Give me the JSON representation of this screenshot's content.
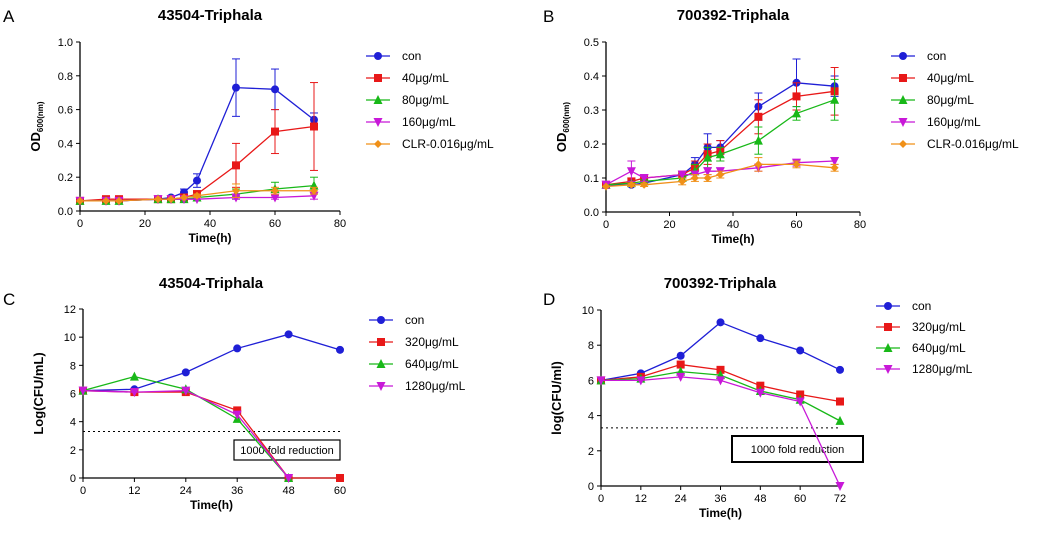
{
  "chart_data": [
    {
      "panel_label": "A",
      "type": "line",
      "title": "43504-Triphala",
      "xlabel": "Time(h)",
      "ylabel": "OD",
      "ylabel_sub": "600(nm)",
      "xlim": [
        0,
        80
      ],
      "ylim": [
        0,
        1.0
      ],
      "xticks": [
        "0",
        "20",
        "40",
        "60",
        "80"
      ],
      "yticks": [
        "0.0",
        "0.2",
        "0.4",
        "0.6",
        "0.8",
        "1.0"
      ],
      "xtick_values": [
        0,
        20,
        40,
        60,
        80
      ],
      "ytick_values": [
        0,
        0.2,
        0.4,
        0.6,
        0.8,
        1.0
      ],
      "x": [
        0,
        8,
        12,
        24,
        28,
        32,
        36,
        48,
        60,
        72
      ],
      "series": [
        {
          "name": "con",
          "color": "#1f1fd6",
          "marker": "circle",
          "values": [
            0.06,
            0.06,
            0.06,
            0.07,
            0.08,
            0.11,
            0.18,
            0.73,
            0.72,
            0.54
          ],
          "errors": [
            0,
            0,
            0,
            0,
            0.01,
            0.02,
            0.04,
            0.17,
            0.12,
            0.04
          ]
        },
        {
          "name": "40μg/mL",
          "color": "#e81818",
          "marker": "square",
          "values": [
            0.06,
            0.07,
            0.07,
            0.07,
            0.07,
            0.08,
            0.1,
            0.27,
            0.47,
            0.5
          ],
          "errors": [
            0,
            0,
            0,
            0,
            0,
            0.01,
            0.02,
            0.13,
            0.13,
            0.26
          ]
        },
        {
          "name": "80μg/mL",
          "color": "#18b818",
          "marker": "triangle",
          "values": [
            0.06,
            0.06,
            0.06,
            0.07,
            0.07,
            0.07,
            0.08,
            0.1,
            0.13,
            0.15
          ],
          "errors": [
            0,
            0,
            0,
            0,
            0,
            0,
            0.01,
            0.03,
            0.04,
            0.05
          ]
        },
        {
          "name": "160μg/mL",
          "color": "#c818d8",
          "marker": "triangle-down",
          "values": [
            0.06,
            0.06,
            0.06,
            0.07,
            0.07,
            0.07,
            0.07,
            0.08,
            0.08,
            0.09
          ],
          "errors": [
            0,
            0,
            0,
            0,
            0,
            0,
            0,
            0.01,
            0.01,
            0.02
          ]
        },
        {
          "name": "CLR-0.016μg/mL",
          "color": "#f09018",
          "marker": "diamond",
          "values": [
            0.06,
            0.06,
            0.06,
            0.07,
            0.07,
            0.08,
            0.09,
            0.12,
            0.12,
            0.12
          ],
          "errors": [
            0,
            0,
            0,
            0,
            0,
            0,
            0.01,
            0.04,
            0.02,
            0.02
          ]
        }
      ]
    },
    {
      "panel_label": "B",
      "type": "line",
      "title": "700392-Triphala",
      "xlabel": "Time(h)",
      "ylabel": "OD",
      "ylabel_sub": "600(nm)",
      "xlim": [
        0,
        80
      ],
      "ylim": [
        0,
        0.5
      ],
      "xticks": [
        "0",
        "20",
        "40",
        "60",
        "80"
      ],
      "yticks": [
        "0.0",
        "0.1",
        "0.2",
        "0.3",
        "0.4",
        "0.5"
      ],
      "xtick_values": [
        0,
        20,
        40,
        60,
        80
      ],
      "ytick_values": [
        0,
        0.1,
        0.2,
        0.3,
        0.4,
        0.5
      ],
      "x": [
        0,
        8,
        12,
        24,
        28,
        32,
        36,
        48,
        60,
        72
      ],
      "series": [
        {
          "name": "con",
          "color": "#1f1fd6",
          "marker": "circle",
          "values": [
            0.08,
            0.08,
            0.085,
            0.11,
            0.14,
            0.19,
            0.19,
            0.31,
            0.38,
            0.37
          ],
          "errors": [
            0,
            0.005,
            0.005,
            0.01,
            0.02,
            0.04,
            0.02,
            0.04,
            0.07,
            0.03
          ]
        },
        {
          "name": "40μg/mL",
          "color": "#e81818",
          "marker": "square",
          "values": [
            0.08,
            0.09,
            0.1,
            0.11,
            0.13,
            0.17,
            0.18,
            0.28,
            0.34,
            0.355
          ],
          "errors": [
            0,
            0.01,
            0.01,
            0.01,
            0.02,
            0.03,
            0.03,
            0.05,
            0.04,
            0.07
          ]
        },
        {
          "name": "80μg/mL",
          "color": "#18b818",
          "marker": "triangle",
          "values": [
            0.08,
            0.085,
            0.09,
            0.1,
            0.12,
            0.16,
            0.17,
            0.21,
            0.29,
            0.33
          ],
          "errors": [
            0,
            0.005,
            0.005,
            0.01,
            0.02,
            0.03,
            0.02,
            0.04,
            0.02,
            0.06
          ]
        },
        {
          "name": "160μg/mL",
          "color": "#c818d8",
          "marker": "triangle-down",
          "values": [
            0.08,
            0.12,
            0.1,
            0.11,
            0.11,
            0.12,
            0.12,
            0.13,
            0.145,
            0.15
          ],
          "errors": [
            0.01,
            0.03,
            0.01,
            0.01,
            0.01,
            0.01,
            0.01,
            0.01,
            0.01,
            0.01
          ]
        },
        {
          "name": "CLR-0.016μg/mL",
          "color": "#f09018",
          "marker": "diamond",
          "values": [
            0.075,
            0.08,
            0.08,
            0.09,
            0.1,
            0.1,
            0.11,
            0.14,
            0.14,
            0.13
          ],
          "errors": [
            0,
            0.005,
            0.005,
            0.01,
            0.01,
            0.01,
            0.01,
            0.02,
            0.01,
            0.01
          ]
        }
      ]
    },
    {
      "panel_label": "C",
      "type": "line",
      "title": "43504-Triphala",
      "xlabel": "Time(h)",
      "ylabel": "Log(CFU/mL)",
      "xlim": [
        0,
        60
      ],
      "ylim": [
        0,
        12
      ],
      "xticks": [
        "0",
        "12",
        "24",
        "36",
        "48",
        "60"
      ],
      "yticks": [
        "0",
        "2",
        "4",
        "6",
        "8",
        "10",
        "12"
      ],
      "xtick_values": [
        0,
        12,
        24,
        36,
        48,
        60
      ],
      "ytick_values": [
        0,
        2,
        4,
        6,
        8,
        10,
        12
      ],
      "reference_line": 3.3,
      "annotation": "1000 fold reduction",
      "series": [
        {
          "name": "con",
          "color": "#1f1fd6",
          "marker": "circle",
          "x": [
            0,
            12,
            24,
            36,
            48,
            60
          ],
          "values": [
            6.2,
            6.3,
            7.5,
            9.2,
            10.2,
            9.1
          ]
        },
        {
          "name": "320μg/mL",
          "color": "#e81818",
          "marker": "square",
          "x": [
            0,
            12,
            24,
            36,
            48,
            60
          ],
          "values": [
            6.2,
            6.1,
            6.1,
            4.8,
            0,
            0
          ]
        },
        {
          "name": "640μg/mL",
          "color": "#18b818",
          "marker": "triangle",
          "x": [
            0,
            12,
            24,
            36,
            48
          ],
          "values": [
            6.2,
            7.2,
            6.3,
            4.2,
            0
          ]
        },
        {
          "name": "1280μg/mL",
          "color": "#c818d8",
          "marker": "triangle-down",
          "x": [
            0,
            12,
            24,
            36,
            48
          ],
          "values": [
            6.2,
            6.1,
            6.2,
            4.5,
            0
          ]
        }
      ]
    },
    {
      "panel_label": "D",
      "type": "line",
      "title": "700392-Triphala",
      "xlabel": "Time(h)",
      "ylabel": "log(CFU/ml)",
      "xlim": [
        0,
        72
      ],
      "ylim": [
        0,
        10
      ],
      "xticks": [
        "0",
        "12",
        "24",
        "36",
        "48",
        "60",
        "72"
      ],
      "yticks": [
        "0",
        "2",
        "4",
        "6",
        "8",
        "10"
      ],
      "xtick_values": [
        0,
        12,
        24,
        36,
        48,
        60,
        72
      ],
      "ytick_values": [
        0,
        2,
        4,
        6,
        8,
        10
      ],
      "reference_line": 3.3,
      "annotation": "1000 fold reduction",
      "series": [
        {
          "name": "con",
          "color": "#1f1fd6",
          "marker": "circle",
          "x": [
            0,
            12,
            24,
            36,
            48,
            60,
            72
          ],
          "values": [
            6.0,
            6.4,
            7.4,
            9.3,
            8.4,
            7.7,
            6.6
          ]
        },
        {
          "name": "320μg/mL",
          "color": "#e81818",
          "marker": "square",
          "x": [
            0,
            12,
            24,
            36,
            48,
            60,
            72
          ],
          "values": [
            6.0,
            6.2,
            6.9,
            6.6,
            5.7,
            5.2,
            4.8
          ]
        },
        {
          "name": "640μg/mL",
          "color": "#18b818",
          "marker": "triangle",
          "x": [
            0,
            12,
            24,
            36,
            48,
            60,
            72
          ],
          "values": [
            6.0,
            6.1,
            6.5,
            6.3,
            5.4,
            4.9,
            3.7
          ]
        },
        {
          "name": "1280μg/mL",
          "color": "#c818d8",
          "marker": "triangle-down",
          "x": [
            0,
            12,
            24,
            36,
            48,
            60,
            72
          ],
          "values": [
            6.0,
            6.0,
            6.2,
            6.0,
            5.3,
            4.8,
            0
          ]
        }
      ]
    }
  ]
}
